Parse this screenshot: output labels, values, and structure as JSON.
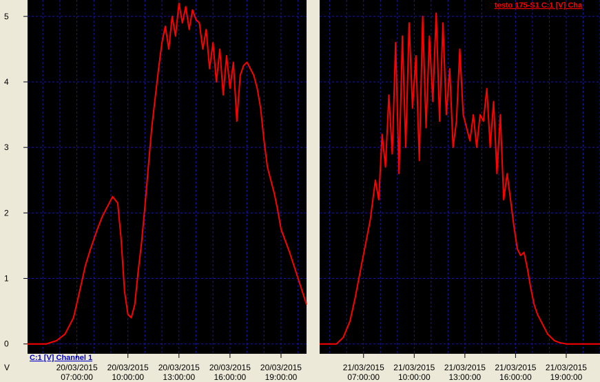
{
  "window": {
    "left_unit": "V",
    "legend_left": "C:1 [V] Channel 1",
    "legend_right": "testo 175-S1 C:1 [V] Cha"
  },
  "colors": {
    "background": "#000000",
    "grid": "#1a1aa0",
    "line": "#ff0000",
    "frame": "#ece9d8",
    "axis_text": "#000000",
    "legend_left": "#0000c0",
    "legend_right": "#ff0000"
  },
  "chart_data": [
    {
      "type": "line",
      "title": "",
      "ylabel": "V",
      "ylim": [
        -0.15,
        5.25
      ],
      "yticks": [
        0,
        1,
        2,
        3,
        4,
        5
      ],
      "xlim": [
        4.1,
        20.5
      ],
      "xticks": [
        {
          "x": 7,
          "date": "20/03/2015",
          "time": "07:00:00"
        },
        {
          "x": 10,
          "date": "20/03/2015",
          "time": "10:00:00"
        },
        {
          "x": 13,
          "date": "20/03/2015",
          "time": "13:00:00"
        },
        {
          "x": 16,
          "date": "20/03/2015",
          "time": "16:00:00"
        },
        {
          "x": 19,
          "date": "20/03/2015",
          "time": "19:00:00"
        }
      ],
      "series": [
        {
          "name": "C:1 [V] Channel 1",
          "x": [
            4.1,
            5.2,
            5.8,
            6.3,
            6.8,
            7.2,
            7.5,
            7.8,
            8.2,
            8.5,
            8.8,
            9.1,
            9.4,
            9.6,
            9.8,
            10.0,
            10.2,
            10.4,
            10.6,
            10.8,
            11.0,
            11.2,
            11.4,
            11.6,
            11.8,
            12.0,
            12.2,
            12.4,
            12.6,
            12.8,
            13.0,
            13.2,
            13.4,
            13.6,
            13.8,
            14.0,
            14.2,
            14.4,
            14.6,
            14.8,
            15.0,
            15.2,
            15.4,
            15.6,
            15.8,
            16.0,
            16.2,
            16.4,
            16.6,
            16.8,
            17.0,
            17.2,
            17.4,
            17.6,
            17.8,
            18.0,
            18.2,
            18.4,
            18.6,
            18.8,
            19.0,
            19.5,
            20.0,
            20.5
          ],
          "y": [
            0.0,
            0.0,
            0.05,
            0.15,
            0.4,
            0.85,
            1.2,
            1.45,
            1.75,
            1.95,
            2.1,
            2.25,
            2.15,
            1.6,
            0.8,
            0.45,
            0.4,
            0.6,
            1.1,
            1.55,
            2.1,
            2.7,
            3.3,
            3.75,
            4.2,
            4.6,
            4.85,
            4.5,
            5.0,
            4.7,
            5.2,
            4.9,
            5.15,
            4.8,
            5.1,
            4.95,
            4.9,
            4.5,
            4.8,
            4.2,
            4.6,
            4.0,
            4.5,
            3.8,
            4.4,
            3.9,
            4.3,
            3.4,
            4.1,
            4.25,
            4.3,
            4.2,
            4.1,
            3.9,
            3.6,
            3.1,
            2.7,
            2.5,
            2.3,
            2.05,
            1.75,
            1.4,
            1.0,
            0.6
          ]
        }
      ]
    },
    {
      "type": "line",
      "title": "",
      "ylabel": "",
      "ylim": [
        -0.15,
        5.25
      ],
      "yticks": [
        0,
        1,
        2,
        3,
        4,
        5
      ],
      "xlim": [
        4.4,
        21.0
      ],
      "xticks": [
        {
          "x": 7,
          "date": "21/03/2015",
          "time": "07:00:00"
        },
        {
          "x": 10,
          "date": "21/03/2015",
          "time": "10:00:00"
        },
        {
          "x": 13,
          "date": "21/03/2015",
          "time": "13:00:00"
        },
        {
          "x": 16,
          "date": "21/03/2015",
          "time": "16:00:00"
        },
        {
          "x": 19,
          "date": "21/03/2015",
          "time": "19:00:00"
        }
      ],
      "series": [
        {
          "name": "testo 175-S1 C:1 [V] Cha",
          "x": [
            4.4,
            5.4,
            5.8,
            6.2,
            6.5,
            6.8,
            7.1,
            7.4,
            7.7,
            7.9,
            8.1,
            8.3,
            8.5,
            8.7,
            8.9,
            9.1,
            9.3,
            9.5,
            9.7,
            9.9,
            10.1,
            10.3,
            10.5,
            10.7,
            10.9,
            11.1,
            11.3,
            11.5,
            11.7,
            11.9,
            12.1,
            12.3,
            12.5,
            12.7,
            12.9,
            13.1,
            13.3,
            13.5,
            13.7,
            13.9,
            14.1,
            14.3,
            14.5,
            14.7,
            14.9,
            15.1,
            15.3,
            15.5,
            15.7,
            15.9,
            16.1,
            16.3,
            16.5,
            16.7,
            16.9,
            17.1,
            17.3,
            17.5,
            17.7,
            17.9,
            18.1,
            18.3,
            18.6,
            19.0,
            19.5,
            20.0,
            21.0
          ],
          "y": [
            0.0,
            0.0,
            0.1,
            0.35,
            0.7,
            1.1,
            1.5,
            1.9,
            2.5,
            2.2,
            3.2,
            2.7,
            3.8,
            2.9,
            4.6,
            2.6,
            4.7,
            3.0,
            4.9,
            3.6,
            4.4,
            2.8,
            5.0,
            3.3,
            4.7,
            3.7,
            5.05,
            3.4,
            4.9,
            3.5,
            4.2,
            3.0,
            3.4,
            4.5,
            3.5,
            3.3,
            3.1,
            3.5,
            3.0,
            3.5,
            3.4,
            3.9,
            3.0,
            3.7,
            2.6,
            3.5,
            2.2,
            2.6,
            2.2,
            1.8,
            1.45,
            1.35,
            1.4,
            1.15,
            0.85,
            0.6,
            0.45,
            0.35,
            0.25,
            0.15,
            0.1,
            0.05,
            0.02,
            0.0,
            0.0,
            0.0,
            0.0
          ]
        }
      ]
    }
  ]
}
